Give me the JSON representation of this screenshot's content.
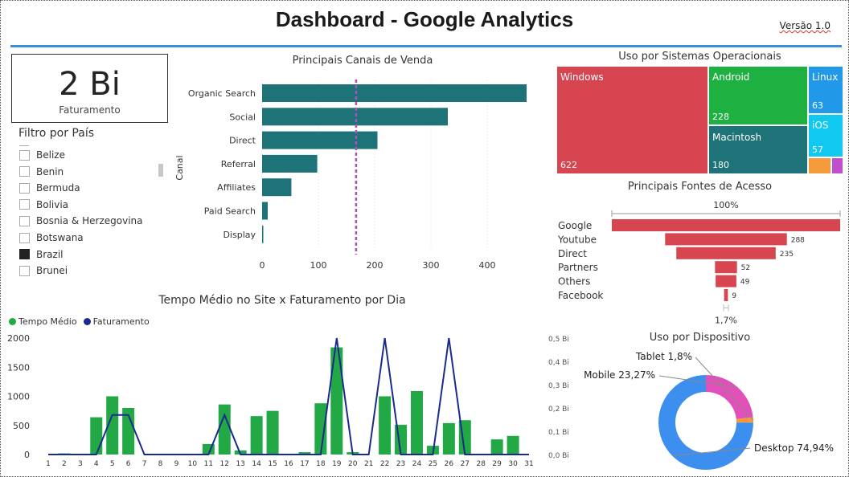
{
  "header": {
    "title": "Dashboard - Google Analytics",
    "version": "Versão 1.0"
  },
  "kpi": {
    "value": "2 Bi",
    "label": "Faturamento"
  },
  "filter": {
    "title": "Filtro por País",
    "countries": [
      {
        "name": "Belize",
        "checked": false
      },
      {
        "name": "Benin",
        "checked": false
      },
      {
        "name": "Bermuda",
        "checked": false
      },
      {
        "name": "Bolivia",
        "checked": false
      },
      {
        "name": "Bosnia & Herzegovina",
        "checked": false
      },
      {
        "name": "Botswana",
        "checked": false
      },
      {
        "name": "Brazil",
        "checked": true
      },
      {
        "name": "Brunei",
        "checked": false
      }
    ]
  },
  "channels": {
    "title": "Principais Canais de Venda",
    "axis_label": "Canal",
    "color": "#1e7378",
    "avg_line_color": "#b44fb8"
  },
  "os": {
    "title": "Uso por Sistemas Operacionais",
    "items": [
      {
        "name": "Windows",
        "value": "622",
        "color": "#d64550"
      },
      {
        "name": "Android",
        "value": "228",
        "color": "#1eb040"
      },
      {
        "name": "Macintosh",
        "value": "180",
        "color": "#1e7378"
      },
      {
        "name": "Linux",
        "value": "63",
        "color": "#2299e8"
      },
      {
        "name": "iOS",
        "value": "57",
        "color": "#10c8f0"
      }
    ],
    "small_colors": [
      "#f59a3a",
      "#c04fd0"
    ]
  },
  "sources": {
    "title": "Principais Fontes de Acesso",
    "top_pct": "100%",
    "bottom_pct": "1,7%",
    "color": "#d64550",
    "labels": [
      "Google",
      "Youtube",
      "Direct",
      "Partners",
      "Others",
      "Facebook"
    ],
    "value_labels": [
      "",
      "288",
      "235",
      "52",
      "49",
      "9"
    ],
    "values": [
      540,
      288,
      235,
      52,
      49,
      9
    ]
  },
  "devices": {
    "title": "Uso por Dispositivo",
    "slices": [
      {
        "label": "Desktop 74,94%",
        "value": 74.94,
        "color": "#3d8fef"
      },
      {
        "label": "Mobile 23,27%",
        "value": 23.27,
        "color": "#e050b8"
      },
      {
        "label": "Tablet 1,8%",
        "value": 1.8,
        "color": "#f59a3a"
      }
    ]
  },
  "daily": {
    "title": "Tempo Médio no Site x Faturamento por Dia",
    "legend_time": "Tempo Médio",
    "legend_revenue": "Faturamento",
    "bar_color": "#22a845",
    "line_color": "#1b2a8f"
  },
  "chart_data": [
    {
      "type": "bar",
      "title": "Principais Canais de Venda",
      "ylabel": "Canal",
      "categories": [
        "Organic Search",
        "Social",
        "Direct",
        "Referral",
        "Affiliates",
        "Paid Search",
        "Display"
      ],
      "values": [
        470,
        330,
        205,
        98,
        52,
        10,
        2
      ],
      "xticks": [
        "0",
        "100",
        "200",
        "300",
        "400"
      ],
      "xlim": [
        0,
        500
      ],
      "average": 167
    },
    {
      "type": "bar+line",
      "title": "Tempo Médio no Site x Faturamento por Dia",
      "categories": [
        "1",
        "2",
        "3",
        "4",
        "5",
        "6",
        "7",
        "8",
        "9",
        "10",
        "11",
        "12",
        "13",
        "14",
        "15",
        "16",
        "17",
        "18",
        "19",
        "20",
        "21",
        "22",
        "23",
        "24",
        "25",
        "26",
        "27",
        "28",
        "29",
        "30",
        "31"
      ],
      "series": [
        {
          "name": "Tempo Médio",
          "axis": "left",
          "values": [
            0,
            20,
            0,
            640,
            1000,
            800,
            0,
            0,
            0,
            0,
            180,
            860,
            70,
            660,
            750,
            0,
            40,
            880,
            1840,
            40,
            0,
            1000,
            510,
            1090,
            150,
            540,
            590,
            0,
            260,
            320,
            0
          ]
        },
        {
          "name": "Faturamento",
          "axis": "right",
          "values": [
            0,
            0,
            0,
            0,
            0.17,
            0.17,
            0,
            0,
            0,
            0,
            0,
            0.17,
            0,
            0,
            0,
            0,
            0,
            0,
            0.5,
            0,
            0,
            0.5,
            0,
            0,
            0,
            0.5,
            0,
            0,
            0,
            0,
            0
          ]
        }
      ],
      "yticks_left": [
        "0",
        "500",
        "1000",
        "1500",
        "2000"
      ],
      "ylim_left": [
        0,
        2000
      ],
      "yticks_right": [
        "0,0 Bi",
        "0,1 Bi",
        "0,2 Bi",
        "0,3 Bi",
        "0,4 Bi",
        "0,5 Bi"
      ],
      "ylim_right": [
        0,
        0.5
      ]
    }
  ]
}
